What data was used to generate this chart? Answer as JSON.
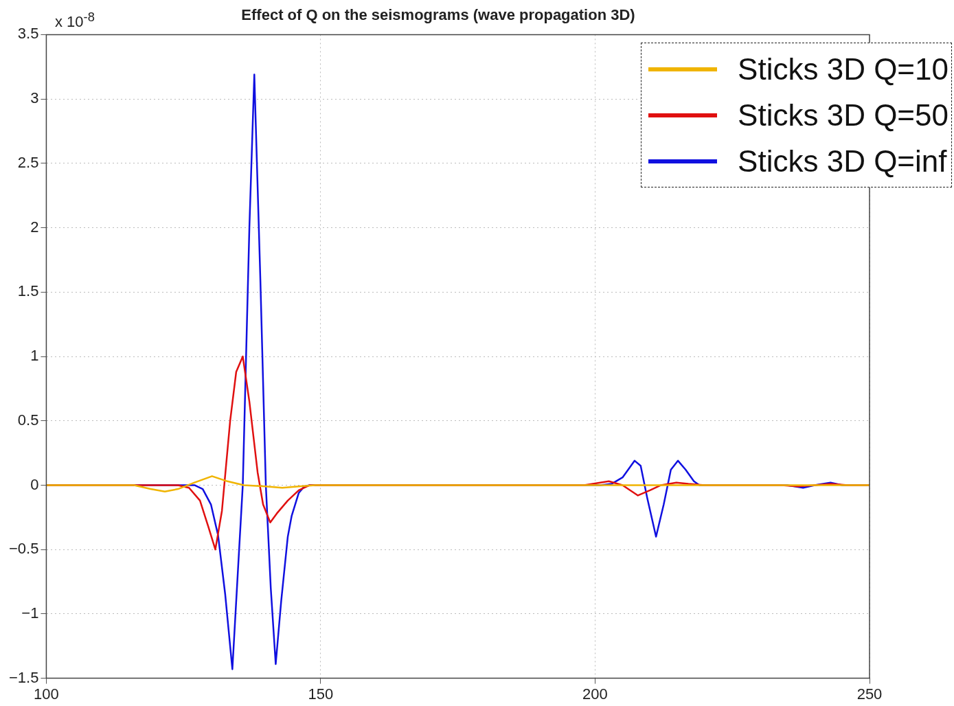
{
  "chart_data": {
    "type": "line",
    "title": "Effect of Q on the seismograms (wave propagation 3D)",
    "annotations": [
      "x 10$^{-8}$"
    ],
    "xlim": [
      100,
      250
    ],
    "xticks": [
      100,
      150,
      200,
      250
    ],
    "ylim": [
      -1.5,
      3.5
    ],
    "yticks": [
      -1.5,
      -1,
      -0.5,
      0,
      0.5,
      1,
      1.5,
      2,
      2.5,
      3,
      3.5
    ],
    "grid": true,
    "legend": "top right",
    "marker": "none",
    "line_style": "solid",
    "series": [
      {
        "name": "Sticks 3D Q=10",
        "color": "#f0b400",
        "x": [
          100,
          116,
          119,
          121.6,
          124,
          127,
          130.2,
          133,
          136,
          140,
          143,
          146,
          149,
          250
        ],
        "values": [
          0,
          0,
          -0.03,
          -0.05,
          -0.03,
          0.02,
          0.07,
          0.03,
          0,
          -0.01,
          -0.02,
          -0.01,
          0,
          0
        ]
      },
      {
        "name": "Sticks 3D Q=50",
        "color": "#e01010",
        "x": [
          100,
          124,
          126,
          128,
          129.5,
          130.8,
          132,
          133.5,
          134.6,
          135.8,
          137,
          138.5,
          139.5,
          140.8,
          142,
          144,
          146,
          148,
          198,
          202.5,
          205,
          207.8,
          210,
          212,
          214.8,
          217,
          220,
          234,
          237,
          240,
          243,
          246,
          250
        ],
        "values": [
          0,
          0,
          -0.02,
          -0.12,
          -0.32,
          -0.5,
          -0.2,
          0.5,
          0.88,
          1.0,
          0.65,
          0.1,
          -0.15,
          -0.29,
          -0.22,
          -0.12,
          -0.04,
          0,
          0,
          0.03,
          0,
          -0.08,
          -0.04,
          0,
          0.02,
          0.01,
          0,
          0,
          -0.01,
          0,
          0.01,
          0,
          0
        ]
      },
      {
        "name": "Sticks 3D Q=inf",
        "color": "#1010e0",
        "x": [
          100,
          127,
          128.5,
          130,
          131.3,
          132.6,
          133.9,
          135,
          135.8,
          137,
          137.9,
          139,
          140,
          140.9,
          141.8,
          142.8,
          144,
          144.7,
          146,
          147,
          148,
          201,
          203,
          205,
          207.2,
          208.3,
          209.5,
          211.1,
          212.5,
          213.8,
          215.1,
          216.5,
          218,
          219,
          235,
          237.9,
          240,
          242.9,
          245,
          250
        ],
        "values": [
          0,
          0,
          -0.03,
          -0.15,
          -0.39,
          -0.85,
          -1.43,
          -0.6,
          0,
          2.0,
          3.19,
          1.6,
          0,
          -0.8,
          -1.39,
          -0.9,
          -0.4,
          -0.24,
          -0.06,
          -0.01,
          0,
          0,
          0.01,
          0.06,
          0.19,
          0.15,
          -0.1,
          -0.4,
          -0.15,
          0.12,
          0.19,
          0.12,
          0.03,
          0,
          0,
          -0.02,
          0,
          0.02,
          0,
          0
        ]
      }
    ]
  }
}
